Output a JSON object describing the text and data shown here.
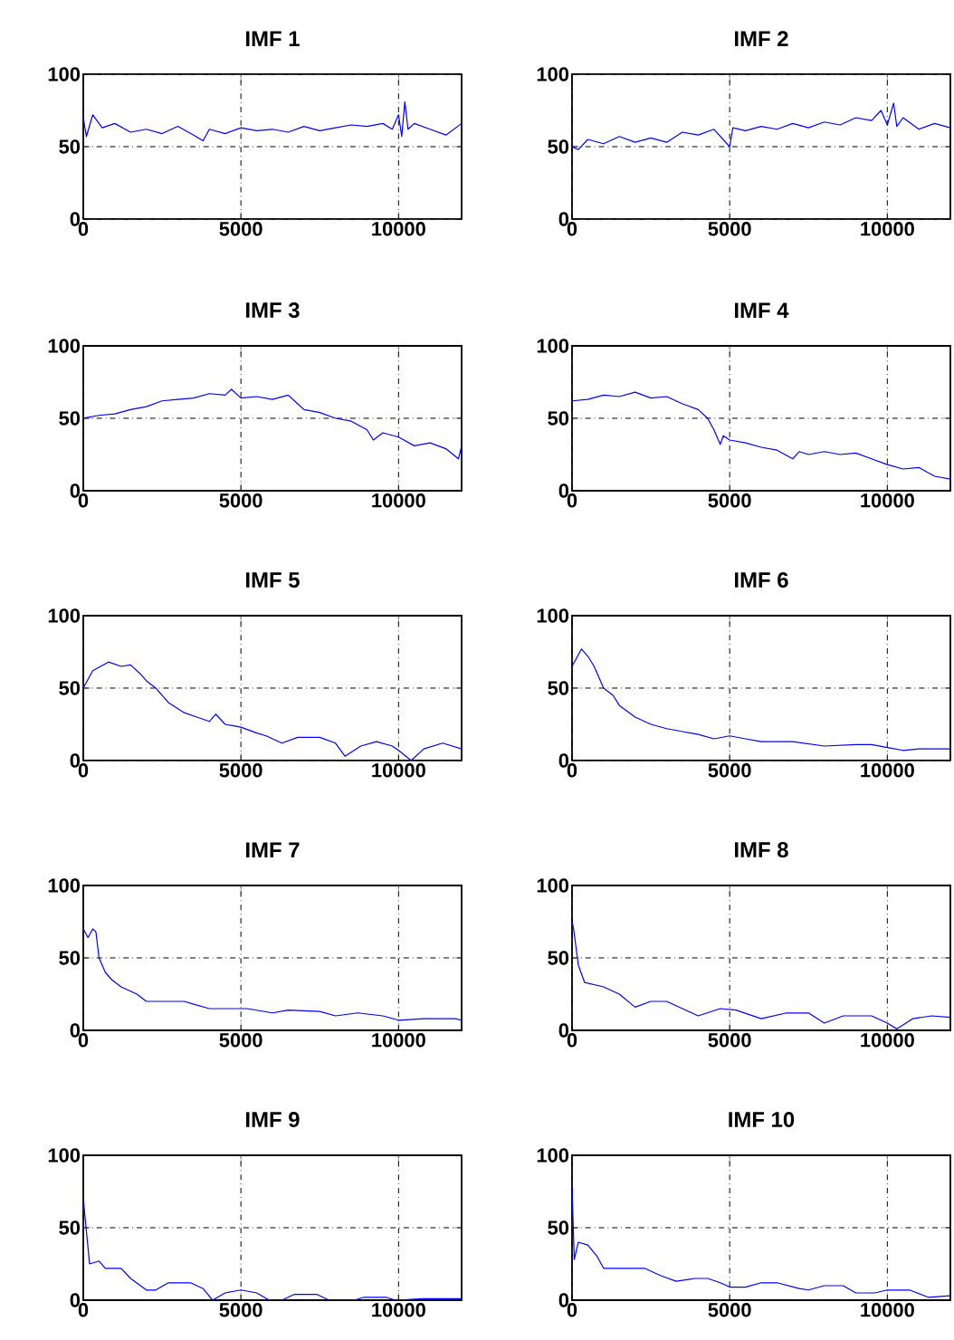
{
  "chart_data": [
    {
      "type": "line",
      "title": "IMF 1",
      "color": "#0000ff",
      "xlim": [
        0,
        12000
      ],
      "ylim": [
        0,
        100
      ],
      "xticks": [
        0,
        5000,
        10000
      ],
      "yticks": [
        0,
        50,
        100
      ],
      "grid": true,
      "x": [
        0,
        100,
        300,
        600,
        1000,
        1500,
        2000,
        2500,
        3000,
        3500,
        3800,
        4000,
        4500,
        5000,
        5500,
        6000,
        6500,
        7000,
        7500,
        8000,
        8500,
        9000,
        9500,
        9800,
        10000,
        10100,
        10200,
        10300,
        10500,
        11000,
        11500,
        12000
      ],
      "values": [
        70,
        57,
        72,
        63,
        66,
        60,
        62,
        59,
        64,
        58,
        54,
        62,
        59,
        63,
        61,
        62,
        60,
        64,
        61,
        63,
        65,
        64,
        66,
        62,
        72,
        57,
        81,
        62,
        66,
        62,
        58,
        66
      ]
    },
    {
      "type": "line",
      "title": "IMF 2",
      "color": "#0000ff",
      "xlim": [
        0,
        12000
      ],
      "ylim": [
        0,
        100
      ],
      "xticks": [
        0,
        5000,
        10000
      ],
      "yticks": [
        0,
        50,
        100
      ],
      "grid": true,
      "x": [
        0,
        200,
        500,
        1000,
        1500,
        2000,
        2500,
        3000,
        3500,
        4000,
        4500,
        5000,
        5100,
        5500,
        6000,
        6500,
        7000,
        7500,
        8000,
        8500,
        9000,
        9500,
        9800,
        10000,
        10200,
        10300,
        10500,
        11000,
        11500,
        12000
      ],
      "values": [
        50,
        48,
        55,
        52,
        57,
        53,
        56,
        53,
        60,
        58,
        62,
        50,
        63,
        61,
        64,
        62,
        66,
        63,
        67,
        65,
        70,
        68,
        75,
        65,
        80,
        64,
        70,
        62,
        66,
        63
      ]
    },
    {
      "type": "line",
      "title": "IMF 3",
      "color": "#0000ff",
      "xlim": [
        0,
        12000
      ],
      "ylim": [
        0,
        100
      ],
      "xticks": [
        0,
        5000,
        10000
      ],
      "yticks": [
        0,
        50,
        100
      ],
      "grid": true,
      "x": [
        0,
        500,
        1000,
        1500,
        2000,
        2500,
        3000,
        3500,
        4000,
        4500,
        4700,
        5000,
        5500,
        6000,
        6500,
        6800,
        7000,
        7500,
        8000,
        8500,
        9000,
        9200,
        9500,
        10000,
        10500,
        11000,
        11500,
        11900,
        12000
      ],
      "values": [
        50,
        52,
        53,
        56,
        58,
        62,
        63,
        64,
        67,
        66,
        70,
        64,
        65,
        63,
        66,
        60,
        56,
        54,
        50,
        48,
        42,
        35,
        40,
        37,
        31,
        33,
        29,
        22,
        31
      ]
    },
    {
      "type": "line",
      "title": "IMF 4",
      "color": "#0000ff",
      "xlim": [
        0,
        12000
      ],
      "ylim": [
        0,
        100
      ],
      "xticks": [
        0,
        5000,
        10000
      ],
      "yticks": [
        0,
        50,
        100
      ],
      "grid": true,
      "x": [
        0,
        500,
        1000,
        1500,
        2000,
        2500,
        3000,
        3500,
        4000,
        4300,
        4500,
        4700,
        4800,
        5000,
        5500,
        6000,
        6500,
        7000,
        7200,
        7500,
        8000,
        8500,
        9000,
        9500,
        10000,
        10500,
        11000,
        11500,
        12000
      ],
      "values": [
        62,
        63,
        66,
        65,
        68,
        64,
        65,
        60,
        56,
        50,
        42,
        32,
        38,
        35,
        33,
        30,
        28,
        22,
        27,
        25,
        27,
        25,
        26,
        22,
        18,
        15,
        16,
        10,
        8
      ]
    },
    {
      "type": "line",
      "title": "IMF 5",
      "color": "#0000ff",
      "xlim": [
        0,
        12000
      ],
      "ylim": [
        0,
        100
      ],
      "xticks": [
        0,
        5000,
        10000
      ],
      "yticks": [
        0,
        50,
        100
      ],
      "grid": true,
      "x": [
        0,
        300,
        800,
        1200,
        1500,
        1800,
        2000,
        2300,
        2700,
        3200,
        3600,
        4000,
        4200,
        4500,
        5000,
        5500,
        5800,
        6300,
        6800,
        7500,
        8000,
        8300,
        8800,
        9300,
        9800,
        10000,
        10400,
        10800,
        11400,
        12000
      ],
      "values": [
        50,
        62,
        68,
        65,
        66,
        60,
        55,
        50,
        40,
        33,
        30,
        27,
        32,
        25,
        23,
        19,
        17,
        12,
        16,
        16,
        12,
        3,
        10,
        13,
        10,
        7,
        0,
        8,
        12,
        8
      ]
    },
    {
      "type": "line",
      "title": "IMF 6",
      "color": "#0000ff",
      "xlim": [
        0,
        12000
      ],
      "ylim": [
        0,
        100
      ],
      "xticks": [
        0,
        5000,
        10000
      ],
      "yticks": [
        0,
        50,
        100
      ],
      "grid": true,
      "x": [
        0,
        300,
        500,
        700,
        1000,
        1300,
        1500,
        2000,
        2500,
        3000,
        3500,
        4000,
        4500,
        5000,
        5500,
        6000,
        7000,
        8000,
        9000,
        9500,
        10000,
        10500,
        11000,
        12000
      ],
      "values": [
        65,
        77,
        72,
        65,
        50,
        45,
        38,
        30,
        25,
        22,
        20,
        18,
        15,
        17,
        15,
        13,
        13,
        10,
        11,
        11,
        9,
        7,
        8,
        8
      ]
    },
    {
      "type": "line",
      "title": "IMF 7",
      "color": "#0000ff",
      "xlim": [
        0,
        12000
      ],
      "ylim": [
        0,
        100
      ],
      "xticks": [
        0,
        5000,
        10000
      ],
      "yticks": [
        0,
        50,
        100
      ],
      "grid": true,
      "x": [
        0,
        150,
        300,
        400,
        500,
        700,
        900,
        1200,
        1700,
        2000,
        3200,
        3500,
        4000,
        5200,
        6000,
        6500,
        7500,
        8000,
        8700,
        9500,
        10000,
        10800,
        11800,
        12000
      ],
      "values": [
        70,
        64,
        70,
        68,
        50,
        40,
        35,
        30,
        25,
        20,
        20,
        18,
        15,
        15,
        12,
        14,
        13,
        10,
        12,
        10,
        7,
        8,
        8,
        7
      ]
    },
    {
      "type": "line",
      "title": "IMF 8",
      "color": "#0000ff",
      "xlim": [
        0,
        12000
      ],
      "ylim": [
        0,
        100
      ],
      "xticks": [
        0,
        5000,
        10000
      ],
      "yticks": [
        0,
        50,
        100
      ],
      "grid": true,
      "x": [
        0,
        50,
        200,
        400,
        1000,
        1500,
        2000,
        2500,
        3000,
        4000,
        4700,
        5200,
        6000,
        6800,
        7500,
        8000,
        8600,
        9500,
        10000,
        10300,
        10800,
        11400,
        12000
      ],
      "values": [
        75,
        70,
        45,
        33,
        30,
        25,
        16,
        20,
        20,
        10,
        15,
        14,
        8,
        12,
        12,
        5,
        10,
        10,
        5,
        1,
        8,
        10,
        9
      ]
    },
    {
      "type": "line",
      "title": "IMF 9",
      "color": "#0000ff",
      "xlim": [
        0,
        12000
      ],
      "ylim": [
        0,
        100
      ],
      "xticks": [
        0,
        5000,
        10000
      ],
      "yticks": [
        0,
        50,
        100
      ],
      "grid": true,
      "x": [
        0,
        200,
        500,
        700,
        1200,
        1500,
        2000,
        2300,
        2700,
        3400,
        3800,
        4100,
        4500,
        5000,
        5500,
        5900,
        6300,
        6700,
        7400,
        7800,
        8600,
        8900,
        9600,
        9900,
        10800,
        12000
      ],
      "values": [
        70,
        25,
        27,
        22,
        22,
        15,
        7,
        7,
        12,
        12,
        8,
        0,
        5,
        7,
        5,
        0,
        0,
        4,
        4,
        0,
        0,
        2,
        2,
        0,
        1,
        1
      ]
    },
    {
      "type": "line",
      "title": "IMF 10",
      "color": "#0000ff",
      "xlim": [
        0,
        12000
      ],
      "ylim": [
        0,
        100
      ],
      "xticks": [
        0,
        5000,
        10000
      ],
      "yticks": [
        0,
        50,
        100
      ],
      "grid": true,
      "x": [
        0,
        70,
        200,
        500,
        800,
        1000,
        2300,
        2800,
        3300,
        3900,
        4300,
        4700,
        5000,
        5500,
        6000,
        6500,
        7200,
        7500,
        8000,
        8600,
        9000,
        9600,
        10000,
        10700,
        11300,
        12000
      ],
      "values": [
        78,
        28,
        40,
        38,
        30,
        22,
        22,
        17,
        13,
        15,
        15,
        12,
        9,
        9,
        12,
        12,
        8,
        7,
        10,
        10,
        5,
        5,
        7,
        7,
        2,
        3
      ]
    }
  ]
}
